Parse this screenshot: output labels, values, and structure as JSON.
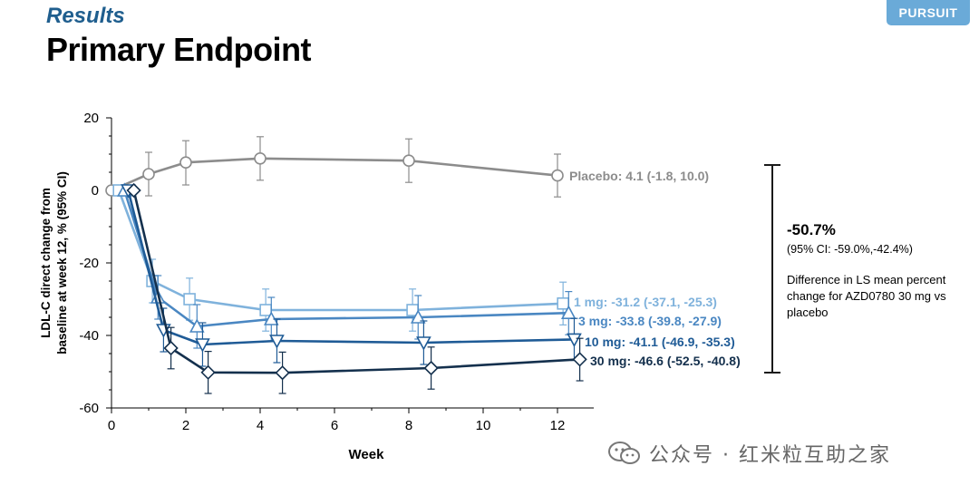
{
  "header": {
    "section": "Results",
    "title": "Primary Endpoint",
    "badge": "PURSUIT"
  },
  "annotation": {
    "difference": "-50.7%",
    "ci": "(95% CI: -59.0%,-42.4%)",
    "description": "Difference in LS mean percent change for AZD0780 30 mg vs placebo"
  },
  "watermark": {
    "text": "公众号 · 红米粒互助之家",
    "icon": "wechat-icon"
  },
  "chart_data": {
    "type": "line",
    "xlabel": "Week",
    "ylabel": "LDL-C direct change from baseline at week 12, % (95% CI)",
    "xlim": [
      0,
      13
    ],
    "ylim": [
      -60,
      20
    ],
    "xticks": [
      0,
      2,
      4,
      6,
      8,
      10,
      12
    ],
    "yticks": [
      20,
      0,
      -20,
      -40,
      -60
    ],
    "grid": false,
    "series": [
      {
        "key": "placebo",
        "name": "Placebo",
        "label": "Placebo: 4.1 (-1.8, 10.0)",
        "color": "#8c8c8c",
        "marker": "circle",
        "points": [
          {
            "x": 0,
            "y": 0
          },
          {
            "x": 1.0,
            "y": 4.5,
            "lo": -1.5,
            "hi": 10.5
          },
          {
            "x": 2.0,
            "y": 7.7,
            "lo": 1.5,
            "hi": 13.7
          },
          {
            "x": 4.0,
            "y": 8.8,
            "lo": 2.8,
            "hi": 14.8
          },
          {
            "x": 8.0,
            "y": 8.2,
            "lo": 2.2,
            "hi": 14.2
          },
          {
            "x": 12.0,
            "y": 4.1,
            "lo": -1.8,
            "hi": 10.0
          }
        ]
      },
      {
        "key": "mg1",
        "name": "1 mg",
        "label": "1 mg: -31.2 (-37.1, -25.3)",
        "color": "#7fb2dc",
        "marker": "square",
        "points": [
          {
            "x": 0.2,
            "y": 0
          },
          {
            "x": 1.1,
            "y": -25.0,
            "lo": -31.0,
            "hi": -19.0
          },
          {
            "x": 2.1,
            "y": -30.0,
            "lo": -35.8,
            "hi": -24.2
          },
          {
            "x": 4.15,
            "y": -33.0,
            "lo": -38.8,
            "hi": -27.2
          },
          {
            "x": 8.1,
            "y": -33.0,
            "lo": -38.8,
            "hi": -27.2
          },
          {
            "x": 12.15,
            "y": -31.2,
            "lo": -37.1,
            "hi": -25.3
          }
        ]
      },
      {
        "key": "mg3",
        "name": "3 mg",
        "label": "3 mg: -33.8 (-39.8, -27.9)",
        "color": "#4a87c2",
        "marker": "triangle-up",
        "points": [
          {
            "x": 0.35,
            "y": 0
          },
          {
            "x": 1.25,
            "y": -29.5,
            "lo": -35.5,
            "hi": -23.5
          },
          {
            "x": 2.3,
            "y": -37.5,
            "lo": -43.5,
            "hi": -31.5
          },
          {
            "x": 4.3,
            "y": -35.5,
            "lo": -41.5,
            "hi": -29.5
          },
          {
            "x": 8.25,
            "y": -35.0,
            "lo": -41.0,
            "hi": -29.0
          },
          {
            "x": 12.3,
            "y": -33.8,
            "lo": -39.8,
            "hi": -27.9
          }
        ]
      },
      {
        "key": "mg10",
        "name": "10 mg",
        "label": "10 mg: -41.1 (-46.9, -35.3)",
        "color": "#1f5b96",
        "marker": "triangle-down",
        "points": [
          {
            "x": 0.45,
            "y": 0
          },
          {
            "x": 1.4,
            "y": -38.5,
            "lo": -44.5,
            "hi": -32.5
          },
          {
            "x": 2.45,
            "y": -42.5,
            "lo": -48.5,
            "hi": -36.5
          },
          {
            "x": 4.45,
            "y": -41.5,
            "lo": -47.5,
            "hi": -35.5
          },
          {
            "x": 8.4,
            "y": -42.0,
            "lo": -48.0,
            "hi": -36.0
          },
          {
            "x": 12.45,
            "y": -41.1,
            "lo": -46.9,
            "hi": -35.3
          }
        ]
      },
      {
        "key": "mg30",
        "name": "30 mg",
        "label": "30 mg: -46.6 (-52.5, -40.8)",
        "color": "#14304d",
        "marker": "diamond",
        "points": [
          {
            "x": 0.6,
            "y": 0
          },
          {
            "x": 1.6,
            "y": -43.5,
            "lo": -49.2,
            "hi": -37.8
          },
          {
            "x": 2.6,
            "y": -50.2,
            "lo": -56.0,
            "hi": -44.4
          },
          {
            "x": 4.6,
            "y": -50.3,
            "lo": -56.0,
            "hi": -44.6
          },
          {
            "x": 8.6,
            "y": -49.0,
            "lo": -54.8,
            "hi": -43.2
          },
          {
            "x": 12.6,
            "y": -46.6,
            "lo": -52.5,
            "hi": -40.8
          }
        ]
      }
    ]
  }
}
